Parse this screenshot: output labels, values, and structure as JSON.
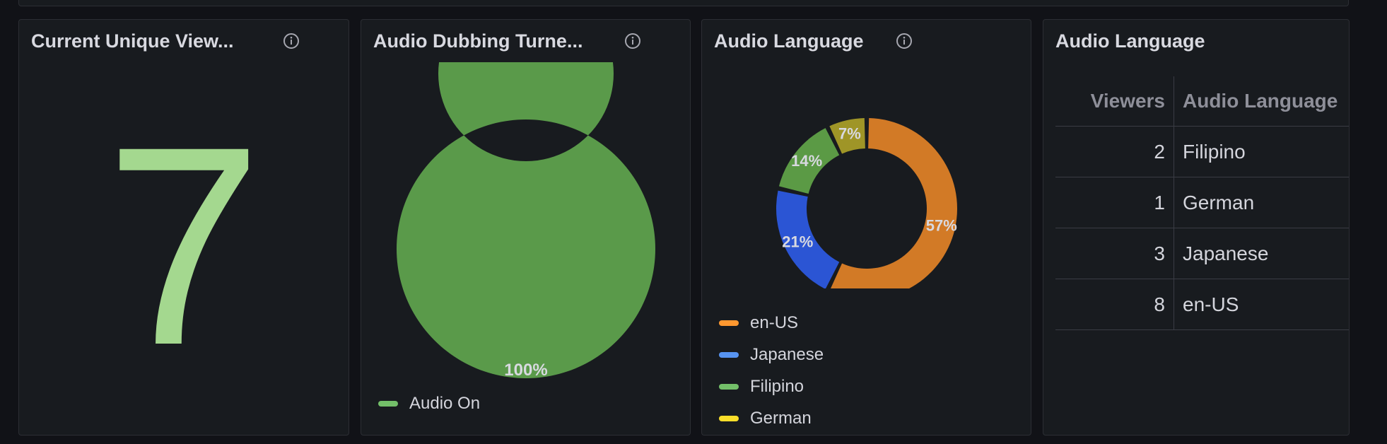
{
  "panels": {
    "unique_viewers": {
      "title": "Current Unique View...",
      "value": "7"
    },
    "audio_dubbing": {
      "title": "Audio Dubbing Turne...",
      "slice_label": "100%",
      "legend": [
        {
          "label": "Audio On",
          "color": "#73bf69"
        }
      ]
    },
    "audio_language_pie": {
      "title": "Audio Language",
      "legend": [
        {
          "label": "en-US",
          "color": "#ff9830"
        },
        {
          "label": "Japanese",
          "color": "#5794f2"
        },
        {
          "label": "Filipino",
          "color": "#73bf69"
        },
        {
          "label": "German",
          "color": "#fade2a"
        }
      ]
    },
    "audio_language_table": {
      "title": "Audio Language",
      "columns": [
        "Viewers",
        "Audio Language"
      ],
      "rows": [
        {
          "viewers": "2",
          "language": "Filipino"
        },
        {
          "viewers": "1",
          "language": "German"
        },
        {
          "viewers": "3",
          "language": "Japanese"
        },
        {
          "viewers": "8",
          "language": "en-US"
        }
      ]
    }
  },
  "chart_data": [
    {
      "type": "pie",
      "title": "Audio Dubbing Turne...",
      "categories": [
        "Audio On"
      ],
      "values": [
        1
      ],
      "labels": [
        "100%"
      ],
      "colors": [
        "#5a9a4a"
      ]
    },
    {
      "type": "pie",
      "title": "Audio Language",
      "categories": [
        "en-US",
        "Japanese",
        "Filipino",
        "German"
      ],
      "values": [
        8,
        3,
        2,
        1
      ],
      "labels": [
        "57%",
        "21%",
        "14%",
        "7%"
      ],
      "colors": [
        "#d27a26",
        "#2b55d4",
        "#5b9a45",
        "#9f9527"
      ]
    }
  ]
}
